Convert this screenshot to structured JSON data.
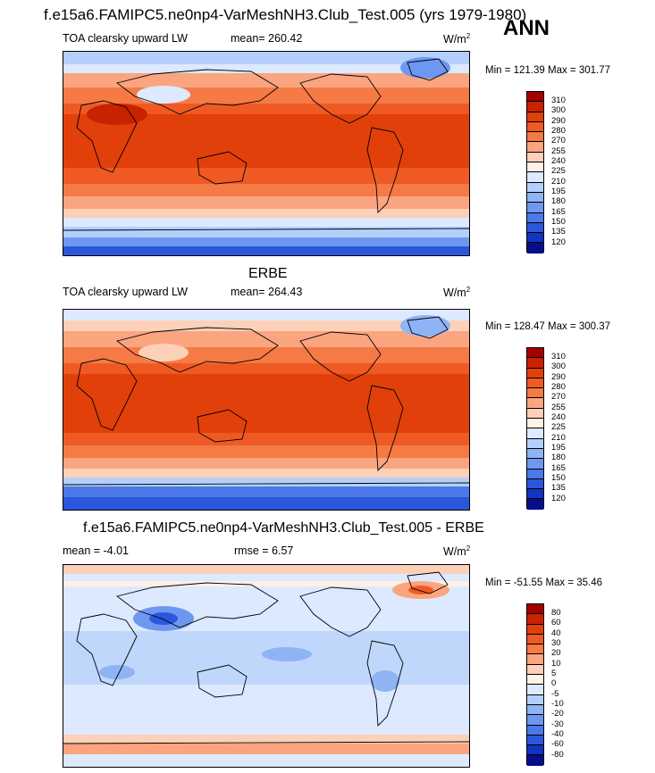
{
  "title": "f.e15a6.FAMIPC5.ne0np4-VarMeshNH3.Club_Test.005 (yrs 1979-1980)",
  "season": "ANN",
  "panels": [
    {
      "title": "",
      "left_label": "TOA clearsky upward LW",
      "center_label": "mean= 260.42",
      "units": "W/m",
      "units_sup": "2",
      "minmax": "Min = 121.39 Max = 301.77",
      "levels": [
        "310",
        "300",
        "290",
        "280",
        "270",
        "255",
        "240",
        "225",
        "210",
        "195",
        "180",
        "165",
        "150",
        "135",
        "120"
      ],
      "colors": [
        "#a50000",
        "#c92200",
        "#e2400a",
        "#ef5a24",
        "#f57a45",
        "#fba580",
        "#fdd0b8",
        "#fff1e6",
        "#dce9ff",
        "#b4cffb",
        "#8fb4f5",
        "#6e98f0",
        "#4c78e8",
        "#2c56dc",
        "#1433c0",
        "#050f8a"
      ]
    },
    {
      "title": "ERBE",
      "left_label": "TOA clearsky upward LW",
      "center_label": "mean= 264.43",
      "units": "W/m",
      "units_sup": "2",
      "minmax": "Min = 128.47 Max = 300.37",
      "levels": [
        "310",
        "300",
        "290",
        "280",
        "270",
        "255",
        "240",
        "225",
        "210",
        "195",
        "180",
        "165",
        "150",
        "135",
        "120"
      ],
      "colors": [
        "#a50000",
        "#c92200",
        "#e2400a",
        "#ef5a24",
        "#f57a45",
        "#fba580",
        "#fdd0b8",
        "#fff1e6",
        "#dce9ff",
        "#b4cffb",
        "#8fb4f5",
        "#6e98f0",
        "#4c78e8",
        "#2c56dc",
        "#1433c0",
        "#050f8a"
      ]
    },
    {
      "title": "f.e15a6.FAMIPC5.ne0np4-VarMeshNH3.Club_Test.005 - ERBE",
      "left_label": "mean =  -4.01",
      "center_label": "rmse =   6.57",
      "units": "W/m",
      "units_sup": "2",
      "minmax": "Min = -51.55 Max =  35.46",
      "levels": [
        "80",
        "60",
        "40",
        "30",
        "20",
        "10",
        "5",
        "0",
        "-5",
        "-10",
        "-20",
        "-30",
        "-40",
        "-60",
        "-80"
      ],
      "colors": [
        "#a50000",
        "#c92200",
        "#e2400a",
        "#ef5a24",
        "#f57a45",
        "#fba580",
        "#fdd0b8",
        "#fff1e6",
        "#dce9ff",
        "#b4cffb",
        "#8fb4f5",
        "#6e98f0",
        "#4c78e8",
        "#2c56dc",
        "#1433c0",
        "#050f8a"
      ]
    }
  ]
}
